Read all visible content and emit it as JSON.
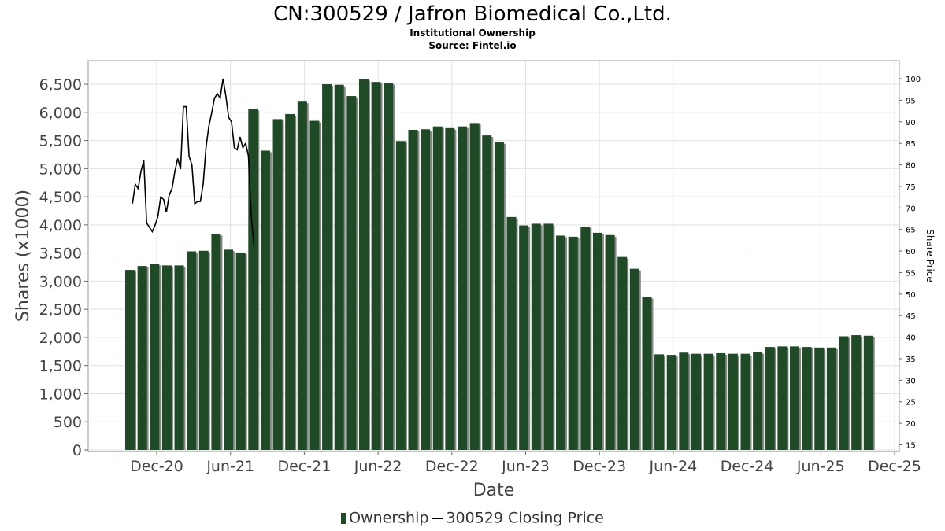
{
  "title": "CN:300529 / Jafron Biomedical Co.,Ltd.",
  "subtitle1": "Institutional Ownership",
  "subtitle2": "Source: Fintel.io",
  "legend": {
    "ownership_label": "Ownership",
    "price_label": "300529 Closing Price"
  },
  "colors": {
    "bar": "#1e4a25",
    "bar_shadow": "#888888",
    "price_line": "#000000",
    "grid": "#e2e2e2"
  },
  "chart_data": {
    "type": "bar",
    "xlabel": "Date",
    "ylabel": "Shares (x1000)",
    "y2label": "Share Price",
    "ylim": [
      0,
      6800
    ],
    "y2lim": [
      15,
      102
    ],
    "grid": true,
    "legend_position": "bottom",
    "x_ticks": [
      "Dec-20",
      "Jun-21",
      "Dec-21",
      "Jun-22",
      "Dec-22",
      "Jun-23",
      "Dec-23",
      "Jun-24",
      "Dec-24",
      "Jun-25",
      "Dec-25"
    ],
    "y_ticks": [
      "0",
      "500",
      "1,000",
      "1,500",
      "2,000",
      "2,500",
      "3,000",
      "3,500",
      "4,000",
      "4,500",
      "5,000",
      "5,500",
      "6,000",
      "6,500"
    ],
    "y2_ticks": [
      "15",
      "20",
      "25",
      "30",
      "35",
      "40",
      "45",
      "50",
      "55",
      "60",
      "65",
      "70",
      "75",
      "80",
      "85",
      "90",
      "95",
      "100"
    ],
    "series": [
      {
        "name": "Ownership",
        "type": "bar",
        "values": [
          3200,
          3270,
          3310,
          3280,
          3280,
          3530,
          3540,
          3840,
          3560,
          3510,
          6060,
          5320,
          5880,
          5970,
          6190,
          5850,
          6500,
          6490,
          6290,
          6590,
          6540,
          6520,
          5490,
          5690,
          5700,
          5750,
          5720,
          5750,
          5810,
          5590,
          5470,
          4140,
          3990,
          4020,
          4020,
          3810,
          3790,
          3970,
          3860,
          3820,
          3430,
          3220,
          2720,
          1700,
          1690,
          1730,
          1710,
          1710,
          1720,
          1710,
          1710,
          1740,
          1830,
          1840,
          1840,
          1830,
          1820,
          1820,
          2020,
          2040,
          2030
        ]
      },
      {
        "name": "300529 Closing Price",
        "type": "line",
        "points": [
          [
            "2020-10-02",
            71
          ],
          [
            "2020-10-09",
            75.5
          ],
          [
            "2020-10-16",
            74.5
          ],
          [
            "2020-10-23",
            78.5
          ],
          [
            "2020-10-30",
            81
          ],
          [
            "2020-11-06",
            66.5
          ],
          [
            "2020-11-13",
            65.5
          ],
          [
            "2020-11-20",
            64.5
          ],
          [
            "2020-11-27",
            66
          ],
          [
            "2020-12-04",
            68
          ],
          [
            "2020-12-11",
            72.5
          ],
          [
            "2020-12-18",
            72
          ],
          [
            "2020-12-25",
            69
          ],
          [
            "2021-01-01",
            73
          ],
          [
            "2021-01-08",
            74.5
          ],
          [
            "2021-01-15",
            78.5
          ],
          [
            "2021-01-22",
            81.5
          ],
          [
            "2021-01-29",
            79
          ],
          [
            "2021-02-05",
            93.5
          ],
          [
            "2021-02-12",
            93.5
          ],
          [
            "2021-02-19",
            82
          ],
          [
            "2021-02-26",
            80
          ],
          [
            "2021-03-05",
            71
          ],
          [
            "2021-03-12",
            71.5
          ],
          [
            "2021-03-19",
            71.5
          ],
          [
            "2021-03-26",
            75.5
          ],
          [
            "2021-04-02",
            84
          ],
          [
            "2021-04-09",
            89
          ],
          [
            "2021-04-16",
            92
          ],
          [
            "2021-04-23",
            95.5
          ],
          [
            "2021-04-30",
            96.5
          ],
          [
            "2021-05-07",
            95.5
          ],
          [
            "2021-05-14",
            100
          ],
          [
            "2021-05-21",
            96
          ],
          [
            "2021-05-28",
            91
          ],
          [
            "2021-06-04",
            90
          ],
          [
            "2021-06-11",
            84
          ],
          [
            "2021-06-18",
            83.5
          ],
          [
            "2021-06-25",
            86.5
          ],
          [
            "2021-07-02",
            84
          ],
          [
            "2021-07-09",
            85
          ],
          [
            "2021-07-16",
            82
          ],
          [
            "2021-07-23",
            68
          ],
          [
            "2021-07-30",
            61
          ]
        ]
      }
    ]
  }
}
